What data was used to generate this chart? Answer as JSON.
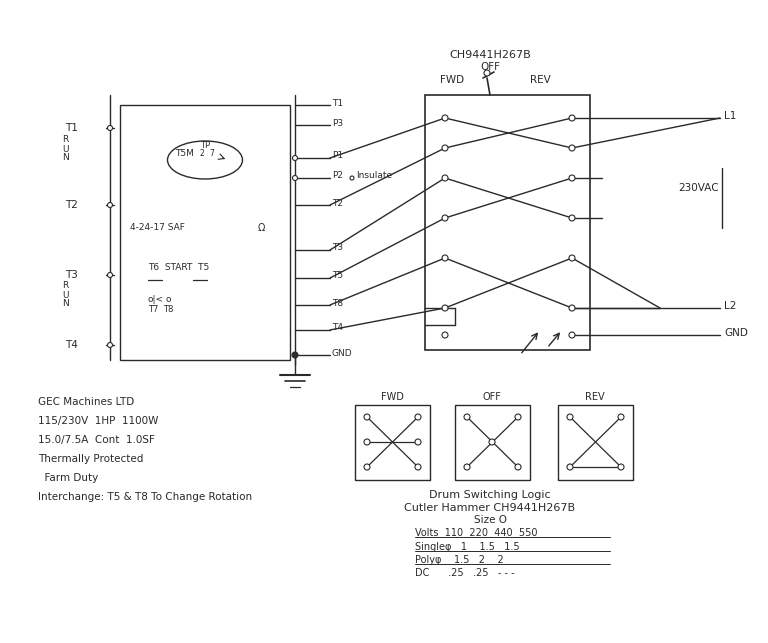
{
  "bg_color": "#ffffff",
  "switch_label": "CH9441H267B",
  "fwd_label": "FWD",
  "off_label": "OFF",
  "rev_label": "REV",
  "motor_specs": [
    "GEC Machines LTD",
    "115/230V  1HP  1100W",
    "15.0/7.5A  Cont  1.0SF",
    "Thermally Protected",
    "  Farm Duty",
    "Interchange: T5 & T8 To Change Rotation"
  ],
  "drum_logic_title": "Drum Switching Logic",
  "drum_logic_sub": "Cutler Hammer CH9441H267B",
  "drum_logic_size": "Size O",
  "line_color": "#2a2a2a",
  "text_color": "#2a2a2a"
}
